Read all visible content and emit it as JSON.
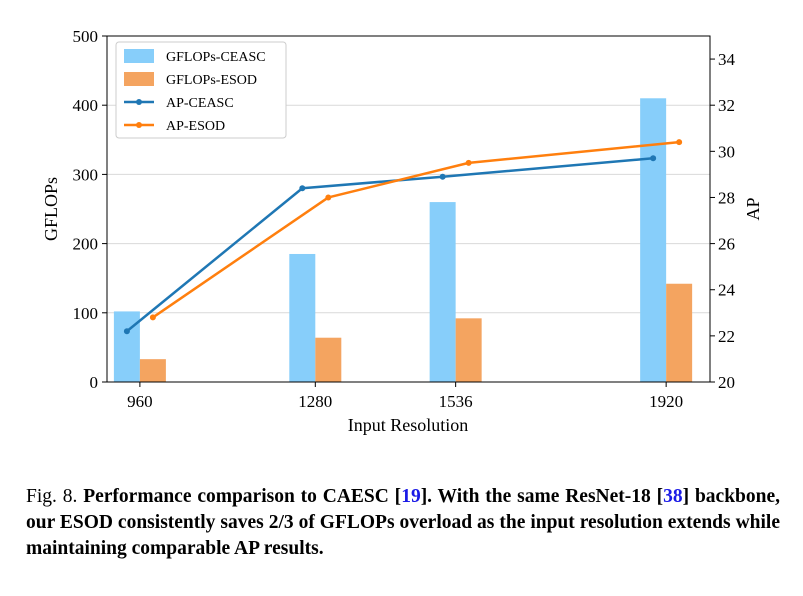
{
  "chart_data": {
    "type": "bar+line",
    "xlabel": "Input Resolution",
    "ylabel_left": "GFLOPs",
    "ylabel_right": "AP",
    "categories": [
      "960",
      "1280",
      "1536",
      "1920"
    ],
    "x": [
      960,
      1280,
      1536,
      1920
    ],
    "xlim": [
      900,
      2000
    ],
    "ylim_left": [
      0,
      500
    ],
    "ylim_right": [
      20,
      35
    ],
    "yticks_left": [
      0,
      100,
      200,
      300,
      400,
      500
    ],
    "yticks_right": [
      20,
      22,
      24,
      26,
      28,
      30,
      32,
      34
    ],
    "grid": "horizontal",
    "legend_position": "top-left",
    "bar_series": [
      {
        "name": "GFLOPs-CEASC",
        "color": "#87CEFA",
        "values": [
          102,
          185,
          260,
          410
        ]
      },
      {
        "name": "GFLOPs-ESOD",
        "color": "#F4A460",
        "values": [
          33,
          64,
          92,
          142
        ]
      }
    ],
    "line_series": [
      {
        "name": "AP-CEASC",
        "color": "#1f77b4",
        "values": [
          22.2,
          28.4,
          28.9,
          29.7
        ]
      },
      {
        "name": "AP-ESOD",
        "color": "#ff7f0e",
        "values": [
          22.8,
          28.0,
          29.5,
          30.4
        ]
      }
    ]
  },
  "caption": {
    "fig_label": "Fig. 8.",
    "p1": "Performance comparison to CAESC [",
    "ref1": "19",
    "p2": "]. With the same ResNet-18 [",
    "ref2": "38",
    "p3": "] backbone, our ESOD consistently saves 2/3 of GFLOPs overload as the input resolution extends while maintaining comparable AP results."
  }
}
